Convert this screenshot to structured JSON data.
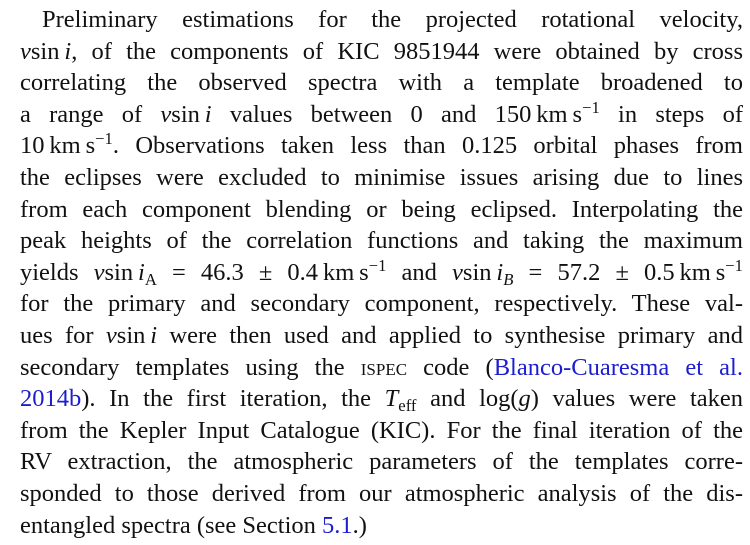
{
  "link_color": "#1d1dd0",
  "lines": [
    [
      {
        "t": "text",
        "v": "Preliminary estimations for the projected rotational velocity,"
      }
    ],
    [
      {
        "t": "it",
        "v": "v"
      },
      {
        "t": "text",
        "v": "sin "
      },
      {
        "t": "it",
        "v": "i"
      },
      {
        "t": "text",
        "v": ", of the components of KIC 9851944 were obtained by cross"
      }
    ],
    [
      {
        "t": "text",
        "v": "correlating the observed spectra with a template broadened to"
      }
    ],
    [
      {
        "t": "text",
        "v": "a range of "
      },
      {
        "t": "it",
        "v": "v"
      },
      {
        "t": "text",
        "v": "sin "
      },
      {
        "t": "it",
        "v": "i"
      },
      {
        "t": "text",
        "v": " values between 0 and 150 km s"
      },
      {
        "t": "sup",
        "v": "−1"
      },
      {
        "t": "text",
        "v": " in steps of"
      }
    ],
    [
      {
        "t": "text",
        "v": "10 km s"
      },
      {
        "t": "sup",
        "v": "−1"
      },
      {
        "t": "text",
        "v": ". Observations taken less than 0.125 orbital phases from"
      }
    ],
    [
      {
        "t": "text",
        "v": "the eclipses were excluded to minimise issues arising due to lines"
      }
    ],
    [
      {
        "t": "text",
        "v": "from each component blending or being eclipsed. Interpolating the"
      }
    ],
    [
      {
        "t": "text",
        "v": "peak heights of the correlation functions and taking the maximum"
      }
    ],
    [
      {
        "t": "text",
        "v": "yields "
      },
      {
        "t": "it",
        "v": "v"
      },
      {
        "t": "text",
        "v": "sin "
      },
      {
        "t": "it",
        "v": "i"
      },
      {
        "t": "sub",
        "v": "A"
      },
      {
        "t": "text",
        "v": " = 46.3 ± 0.4 km s"
      },
      {
        "t": "sup",
        "v": "−1"
      },
      {
        "t": "text",
        "v": " and "
      },
      {
        "t": "it",
        "v": "v"
      },
      {
        "t": "text",
        "v": "sin "
      },
      {
        "t": "it",
        "v": "i"
      },
      {
        "t": "subit",
        "v": "B"
      },
      {
        "t": "text",
        "v": " = 57.2 ± 0.5 km s"
      },
      {
        "t": "sup",
        "v": "−1"
      }
    ],
    [
      {
        "t": "text",
        "v": "for the primary and secondary component, respectively. These val-"
      }
    ],
    [
      {
        "t": "text",
        "v": "ues for "
      },
      {
        "t": "it",
        "v": "v"
      },
      {
        "t": "text",
        "v": "sin "
      },
      {
        "t": "it",
        "v": "i"
      },
      {
        "t": "text",
        "v": " were then used and applied to synthesise primary and"
      }
    ],
    [
      {
        "t": "text",
        "v": "secondary templates using the "
      },
      {
        "t": "sc",
        "v": "ispec"
      },
      {
        "t": "text",
        "v": " code ("
      },
      {
        "t": "link",
        "v": "Blanco-Cuaresma et al."
      }
    ],
    [
      {
        "t": "link",
        "v": "2014b"
      },
      {
        "t": "text",
        "v": "). In the first iteration, the "
      },
      {
        "t": "it",
        "v": "T"
      },
      {
        "t": "sub",
        "v": "eff"
      },
      {
        "t": "text",
        "v": " and log("
      },
      {
        "t": "it",
        "v": "g"
      },
      {
        "t": "text",
        "v": ") values were taken"
      }
    ],
    [
      {
        "t": "text",
        "v": "from the Kepler Input Catalogue (KIC). For the final iteration of the"
      }
    ],
    [
      {
        "t": "text",
        "v": "RV extraction, the atmospheric parameters of the templates corre-"
      }
    ],
    [
      {
        "t": "text",
        "v": "sponded to those derived from our atmospheric analysis of the dis-"
      }
    ],
    [
      {
        "t": "text",
        "v": "entangled spectra (see Section "
      },
      {
        "t": "link",
        "v": "5.1"
      },
      {
        "t": "text",
        "v": ".)"
      }
    ]
  ]
}
